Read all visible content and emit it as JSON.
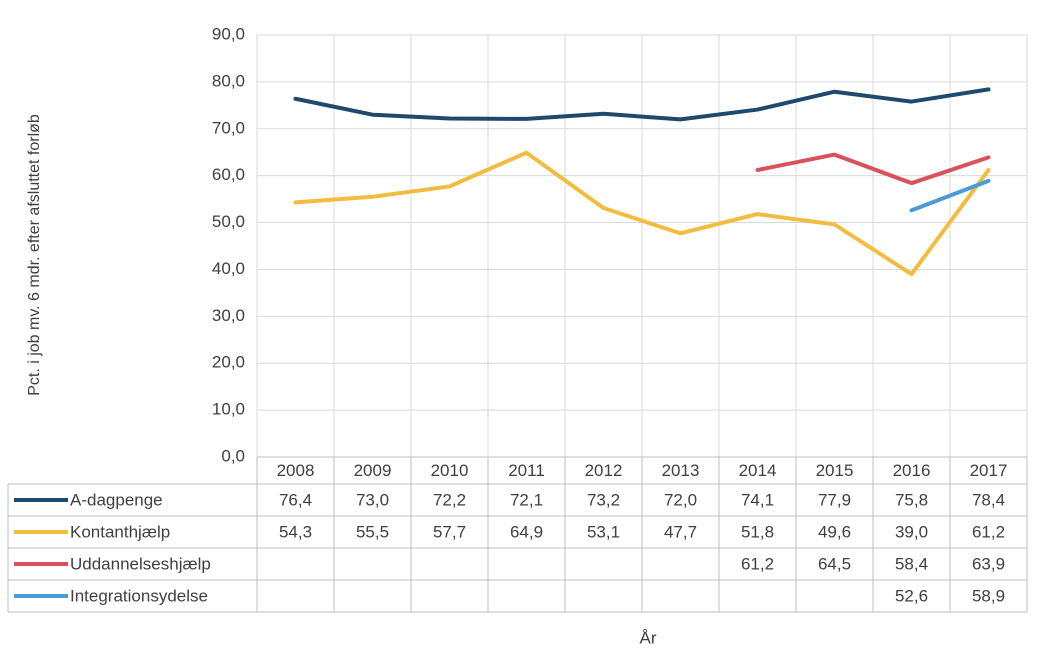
{
  "chart_data": {
    "type": "line",
    "y_label": "Pct. i job mv. 6 mdr. efter afsluttet forløb",
    "x_label": "År",
    "categories": [
      "2008",
      "2009",
      "2010",
      "2011",
      "2012",
      "2013",
      "2014",
      "2015",
      "2016",
      "2017"
    ],
    "series": [
      {
        "name": "A-dagpenge",
        "color": "#1f4a6e",
        "values": [
          76.4,
          73.0,
          72.2,
          72.1,
          73.2,
          72.0,
          74.1,
          77.9,
          75.8,
          78.4
        ],
        "value_labels": [
          "76,4",
          "73,0",
          "72,2",
          "72,1",
          "73,2",
          "72,0",
          "74,1",
          "77,9",
          "75,8",
          "78,4"
        ]
      },
      {
        "name": "Kontanthjælp",
        "color": "#f2bc41",
        "values": [
          54.3,
          55.5,
          57.7,
          64.9,
          53.1,
          47.7,
          51.8,
          49.6,
          39.0,
          61.2
        ],
        "value_labels": [
          "54,3",
          "55,5",
          "57,7",
          "64,9",
          "53,1",
          "47,7",
          "51,8",
          "49,6",
          "39,0",
          "61,2"
        ]
      },
      {
        "name": "Uddannelseshjælp",
        "color": "#d9515a",
        "values": [
          null,
          null,
          null,
          null,
          null,
          null,
          61.2,
          64.5,
          58.4,
          63.9
        ],
        "value_labels": [
          null,
          null,
          null,
          null,
          null,
          null,
          "61,2",
          "64,5",
          "58,4",
          "63,9"
        ]
      },
      {
        "name": "Integrationsydelse",
        "color": "#4a9bd6",
        "values": [
          null,
          null,
          null,
          null,
          null,
          null,
          null,
          null,
          52.6,
          58.9
        ],
        "value_labels": [
          null,
          null,
          null,
          null,
          null,
          null,
          null,
          null,
          "52,6",
          "58,9"
        ]
      }
    ],
    "ylim": [
      0,
      90
    ],
    "yticks": [
      {
        "value": 0,
        "label": "0,0"
      },
      {
        "value": 10,
        "label": "10,0"
      },
      {
        "value": 20,
        "label": "20,0"
      },
      {
        "value": 30,
        "label": "30,0"
      },
      {
        "value": 40,
        "label": "40,0"
      },
      {
        "value": 50,
        "label": "50,0"
      },
      {
        "value": 60,
        "label": "60,0"
      },
      {
        "value": 70,
        "label": "70,0"
      },
      {
        "value": 80,
        "label": "80,0"
      },
      {
        "value": 90,
        "label": "90,0"
      }
    ],
    "grid": true
  }
}
